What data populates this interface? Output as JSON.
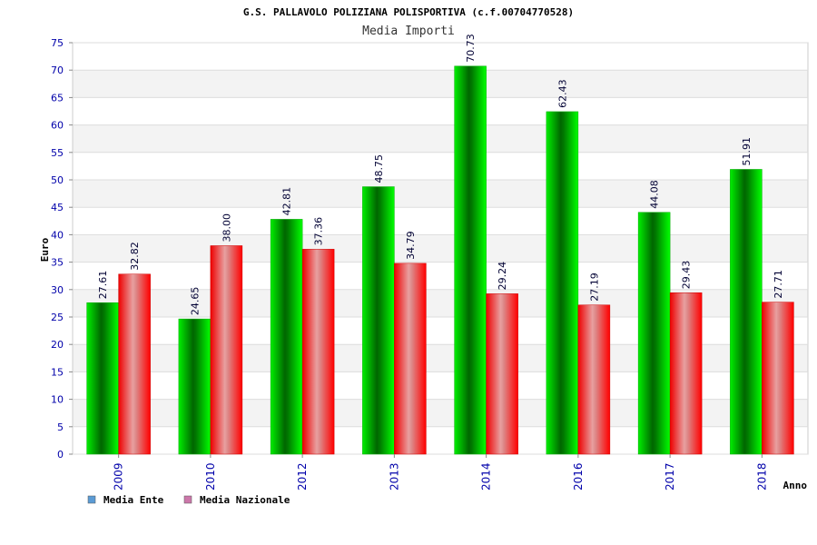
{
  "chart_data": {
    "type": "bar",
    "title": "G.S. PALLAVOLO POLIZIANA POLISPORTIVA (c.f.00704770528)",
    "subtitle": "Media Importi",
    "xlabel": "Anno",
    "ylabel": "Euro",
    "ylim": [
      0,
      75
    ],
    "ytick_step": 5,
    "grid": true,
    "legend_position": "bottom-left",
    "categories": [
      "2009",
      "2010",
      "2012",
      "2013",
      "2014",
      "2016",
      "2017",
      "2018"
    ],
    "series": [
      {
        "name": "Media Ente",
        "values": [
          27.61,
          24.65,
          42.81,
          48.75,
          70.73,
          62.43,
          44.08,
          51.91
        ],
        "labels": [
          "27.61",
          "24.65",
          "42.81",
          "48.75",
          "70.73",
          "62.43",
          "44.08",
          "51.91"
        ],
        "color": "#00cc00",
        "legend_color": "#5b9bd5"
      },
      {
        "name": "Media Nazionale",
        "values": [
          32.82,
          38.0,
          37.36,
          34.79,
          29.24,
          27.19,
          29.43,
          27.71
        ],
        "labels": [
          "32.82",
          "38.00",
          "37.36",
          "34.79",
          "29.24",
          "27.19",
          "29.43",
          "27.71"
        ],
        "color": "#ee1111",
        "legend_color": "#cc77aa"
      }
    ]
  }
}
